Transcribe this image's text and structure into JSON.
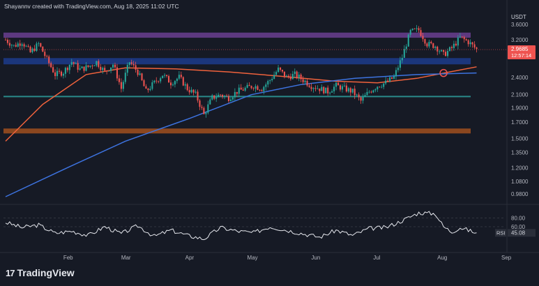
{
  "header": {
    "text": "Shayannv created with TradingView.com, Aug 18, 2025 11:02 UTC"
  },
  "price_axis": {
    "currency": "USDT",
    "ticks": [
      "3.6000",
      "3.2000",
      "2.4000",
      "2.1000",
      "1.9000",
      "1.7000",
      "1.5000",
      "1.3500",
      "1.2000",
      "1.0800",
      "0.9800"
    ],
    "last_price": "2.9685",
    "countdown": "12:57:14"
  },
  "rsi_axis": {
    "ticks": [
      "80.00",
      "60.00"
    ],
    "label": "RSI",
    "value": "45.08"
  },
  "time_axis": {
    "ticks": [
      "Feb",
      "Mar",
      "Apr",
      "May",
      "Jun",
      "Jul",
      "Aug",
      "Sep"
    ]
  },
  "branding": {
    "logo_mark": "17",
    "name": "TradingView"
  },
  "colors": {
    "background": "#161a25",
    "up": "#26a69a",
    "down": "#ef5350",
    "resistance_zone": "#6a3f91",
    "support_zone_blue": "#1c3c8c",
    "support_zone_orange": "#a0501e",
    "support_line_teal": "#2a8a8a",
    "ma_orange": "#f0623c",
    "ma_blue": "#3d73e0",
    "rsi_line": "#e6e8ee"
  },
  "chart_data": {
    "type": "candlestick",
    "symbol_quote": "USDT",
    "y_scale": "log",
    "ylim": [
      0.92,
      3.9
    ],
    "x_range": [
      "2025-01-01",
      "2025-09-01"
    ],
    "zones": [
      {
        "name": "resistance",
        "low": 3.25,
        "high": 3.38,
        "color": "#6a3f91"
      },
      {
        "name": "support",
        "low": 2.65,
        "high": 2.78,
        "color": "#1c3c8c"
      },
      {
        "name": "support",
        "low": 1.56,
        "high": 1.62,
        "color": "#a0501e"
      }
    ],
    "lines": [
      {
        "name": "support",
        "value": 2.07,
        "color": "#2a8a8a"
      }
    ],
    "price_path": [
      [
        "2025-01-02",
        3.2
      ],
      [
        "2025-01-06",
        3.05
      ],
      [
        "2025-01-10",
        3.15
      ],
      [
        "2025-01-14",
        2.9
      ],
      [
        "2025-01-18",
        3.1
      ],
      [
        "2025-01-22",
        2.75
      ],
      [
        "2025-01-26",
        2.45
      ],
      [
        "2025-01-30",
        2.5
      ],
      [
        "2025-02-03",
        2.7
      ],
      [
        "2025-02-07",
        2.55
      ],
      [
        "2025-02-11",
        2.6
      ],
      [
        "2025-02-15",
        2.7
      ],
      [
        "2025-02-19",
        2.5
      ],
      [
        "2025-02-23",
        2.65
      ],
      [
        "2025-02-27",
        2.2
      ],
      [
        "2025-03-03",
        2.7
      ],
      [
        "2025-03-07",
        2.5
      ],
      [
        "2025-03-11",
        2.15
      ],
      [
        "2025-03-15",
        2.3
      ],
      [
        "2025-03-19",
        2.45
      ],
      [
        "2025-03-23",
        2.3
      ],
      [
        "2025-03-27",
        2.4
      ],
      [
        "2025-03-31",
        2.2
      ],
      [
        "2025-04-04",
        2.1
      ],
      [
        "2025-04-08",
        1.8
      ],
      [
        "2025-04-12",
        2.05
      ],
      [
        "2025-04-16",
        2.1
      ],
      [
        "2025-04-20",
        2.05
      ],
      [
        "2025-04-24",
        2.15
      ],
      [
        "2025-04-28",
        2.2
      ],
      [
        "2025-05-02",
        2.25
      ],
      [
        "2025-05-06",
        2.2
      ],
      [
        "2025-05-10",
        2.35
      ],
      [
        "2025-05-14",
        2.55
      ],
      [
        "2025-05-18",
        2.4
      ],
      [
        "2025-05-22",
        2.45
      ],
      [
        "2025-05-26",
        2.35
      ],
      [
        "2025-05-30",
        2.25
      ],
      [
        "2025-06-03",
        2.2
      ],
      [
        "2025-06-07",
        2.15
      ],
      [
        "2025-06-11",
        2.25
      ],
      [
        "2025-06-15",
        2.2
      ],
      [
        "2025-06-19",
        2.15
      ],
      [
        "2025-06-23",
        2.0
      ],
      [
        "2025-06-27",
        2.15
      ],
      [
        "2025-07-01",
        2.25
      ],
      [
        "2025-07-05",
        2.3
      ],
      [
        "2025-07-09",
        2.4
      ],
      [
        "2025-07-13",
        2.8
      ],
      [
        "2025-07-17",
        3.4
      ],
      [
        "2025-07-21",
        3.45
      ],
      [
        "2025-07-25",
        3.1
      ],
      [
        "2025-07-29",
        3.05
      ],
      [
        "2025-08-02",
        2.85
      ],
      [
        "2025-08-06",
        3.0
      ],
      [
        "2025-08-10",
        3.25
      ],
      [
        "2025-08-14",
        3.15
      ],
      [
        "2025-08-18",
        2.97
      ]
    ],
    "moving_averages": [
      {
        "color": "#f0623c",
        "path": [
          [
            "2025-01-02",
            1.47
          ],
          [
            "2025-01-20",
            1.95
          ],
          [
            "2025-02-10",
            2.45
          ],
          [
            "2025-03-01",
            2.58
          ],
          [
            "2025-03-25",
            2.56
          ],
          [
            "2025-04-20",
            2.5
          ],
          [
            "2025-05-15",
            2.42
          ],
          [
            "2025-06-10",
            2.33
          ],
          [
            "2025-07-01",
            2.3
          ],
          [
            "2025-07-20",
            2.38
          ],
          [
            "2025-08-05",
            2.5
          ],
          [
            "2025-08-18",
            2.6
          ]
        ]
      },
      {
        "color": "#3d73e0",
        "path": [
          [
            "2025-01-02",
            0.96
          ],
          [
            "2025-02-01",
            1.2
          ],
          [
            "2025-03-01",
            1.47
          ],
          [
            "2025-04-01",
            1.75
          ],
          [
            "2025-05-01",
            2.1
          ],
          [
            "2025-05-25",
            2.27
          ],
          [
            "2025-06-20",
            2.38
          ],
          [
            "2025-07-20",
            2.45
          ],
          [
            "2025-08-18",
            2.48
          ]
        ]
      }
    ],
    "marker": {
      "date": "2025-08-02",
      "price": 2.48,
      "shape": "circle",
      "color": "#ef5350"
    },
    "rsi": {
      "ylim": [
        20,
        100
      ],
      "path": [
        [
          "2025-01-02",
          70
        ],
        [
          "2025-01-10",
          58
        ],
        [
          "2025-01-18",
          64
        ],
        [
          "2025-01-26",
          45
        ],
        [
          "2025-02-03",
          50
        ],
        [
          "2025-02-11",
          40
        ],
        [
          "2025-02-19",
          60
        ],
        [
          "2025-02-27",
          44
        ],
        [
          "2025-03-07",
          62
        ],
        [
          "2025-03-15",
          38
        ],
        [
          "2025-03-23",
          52
        ],
        [
          "2025-03-31",
          40
        ],
        [
          "2025-04-08",
          32
        ],
        [
          "2025-04-16",
          58
        ],
        [
          "2025-04-24",
          50
        ],
        [
          "2025-05-02",
          46
        ],
        [
          "2025-05-10",
          60
        ],
        [
          "2025-05-18",
          52
        ],
        [
          "2025-05-26",
          44
        ],
        [
          "2025-06-03",
          36
        ],
        [
          "2025-06-11",
          52
        ],
        [
          "2025-06-19",
          40
        ],
        [
          "2025-06-27",
          56
        ],
        [
          "2025-07-05",
          58
        ],
        [
          "2025-07-13",
          74
        ],
        [
          "2025-07-21",
          92
        ],
        [
          "2025-07-29",
          90
        ],
        [
          "2025-08-02",
          60
        ],
        [
          "2025-08-06",
          48
        ],
        [
          "2025-08-10",
          58
        ],
        [
          "2025-08-14",
          52
        ],
        [
          "2025-08-18",
          45
        ]
      ]
    }
  }
}
